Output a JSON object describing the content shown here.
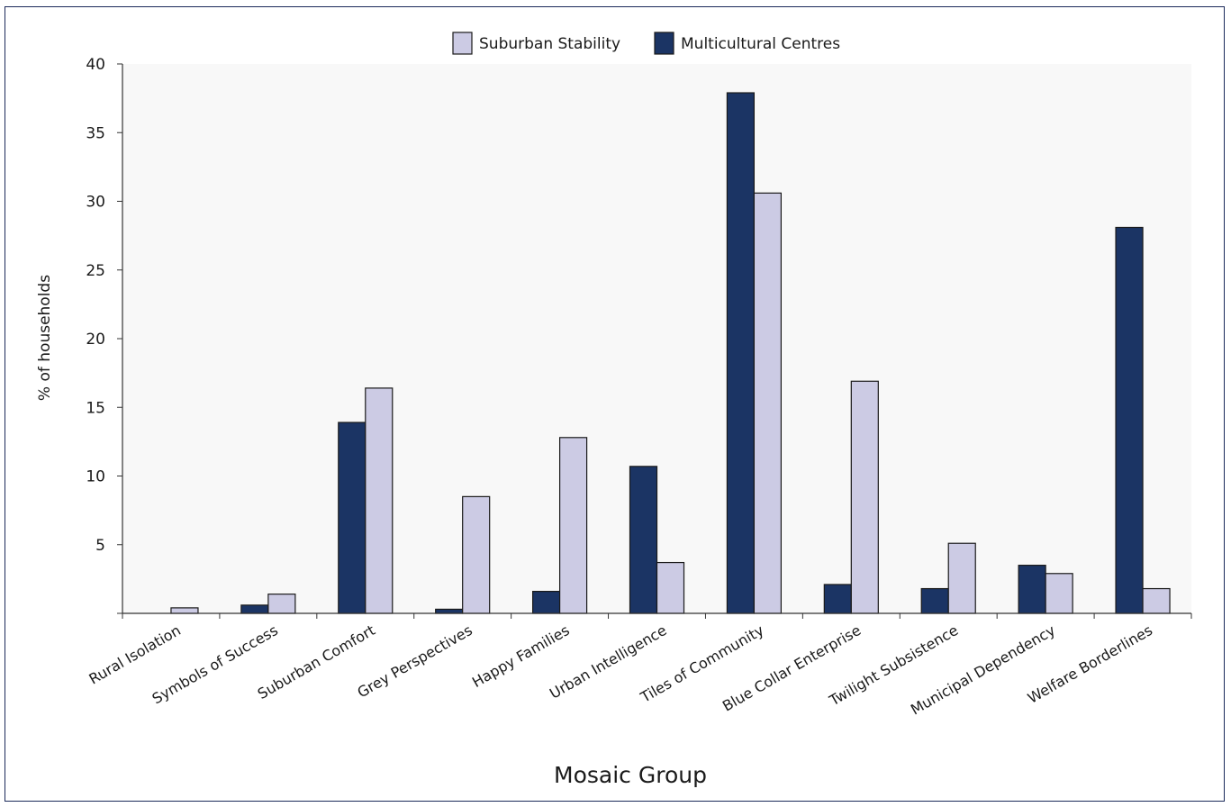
{
  "chart_data": {
    "type": "bar",
    "title": "",
    "xlabel": "Mosaic Group",
    "ylabel": "% of households",
    "ylim": [
      0,
      40
    ],
    "yticks": [
      5,
      10,
      15,
      20,
      25,
      30,
      35,
      40
    ],
    "categories": [
      "Rural Isolation",
      "Symbols of Success",
      "Suburban Comfort",
      "Grey Perspectives",
      "Happy Families",
      "Urban Intelligence",
      "Tiles of Community",
      "Blue Collar Enterprise",
      "Twilight Subsistence",
      "Municipal Dependency",
      "Welfare Borderlines"
    ],
    "series": [
      {
        "name": "Multicultural Centres",
        "color": "#1b3464",
        "values": [
          0,
          0.6,
          13.9,
          0.3,
          1.6,
          10.7,
          37.9,
          2.1,
          1.8,
          3.5,
          28.1
        ]
      },
      {
        "name": "Suburban Stability",
        "color": "#cccbe4",
        "values": [
          0.4,
          1.4,
          16.4,
          8.5,
          12.8,
          3.7,
          30.6,
          16.9,
          5.1,
          2.9,
          1.8
        ]
      }
    ],
    "legend": {
      "position": "top-center",
      "order": [
        "Suburban Stability",
        "Multicultural Centres"
      ]
    },
    "grid": false,
    "plot_background": "#f8f8f8"
  }
}
